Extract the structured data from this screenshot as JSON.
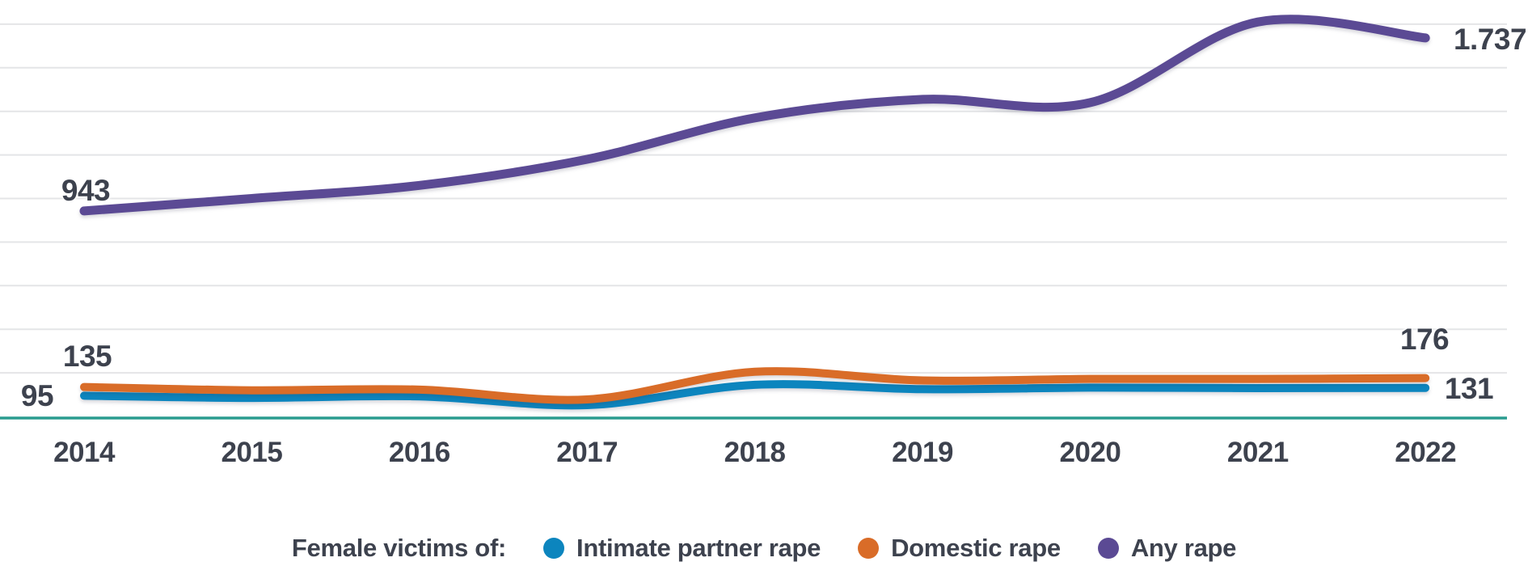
{
  "chart_data": {
    "type": "line",
    "x": [
      "2014",
      "2015",
      "2016",
      "2017",
      "2018",
      "2019",
      "2020",
      "2021",
      "2022"
    ],
    "series": [
      {
        "name": "Intimate partner rape",
        "color": "#0c85be",
        "values": [
          95,
          85,
          92,
          52,
          145,
          125,
          132,
          130,
          131
        ],
        "start_label": "95",
        "end_label": "131"
      },
      {
        "name": "Domestic rape",
        "color": "#d96c28",
        "values": [
          135,
          120,
          123,
          78,
          205,
          165,
          172,
          172,
          176
        ],
        "start_label": "135",
        "end_label": "176"
      },
      {
        "name": "Any rape",
        "color": "#5b4a94",
        "values": [
          943,
          1000,
          1060,
          1180,
          1370,
          1455,
          1440,
          1810,
          1737
        ],
        "start_label": "943",
        "end_label": "1.737"
      }
    ],
    "ylim": [
      0,
      1915
    ],
    "gridlines": {
      "from": 200,
      "to": 1800,
      "step": 200
    },
    "grid": "horizontal",
    "legend_position": "bottom",
    "legend_title": "Female victims of:"
  },
  "colors": {
    "background": "#ffffff",
    "grid": "#e4e5e7",
    "baseline": "#2a9c8f",
    "text": "#3d424e"
  }
}
